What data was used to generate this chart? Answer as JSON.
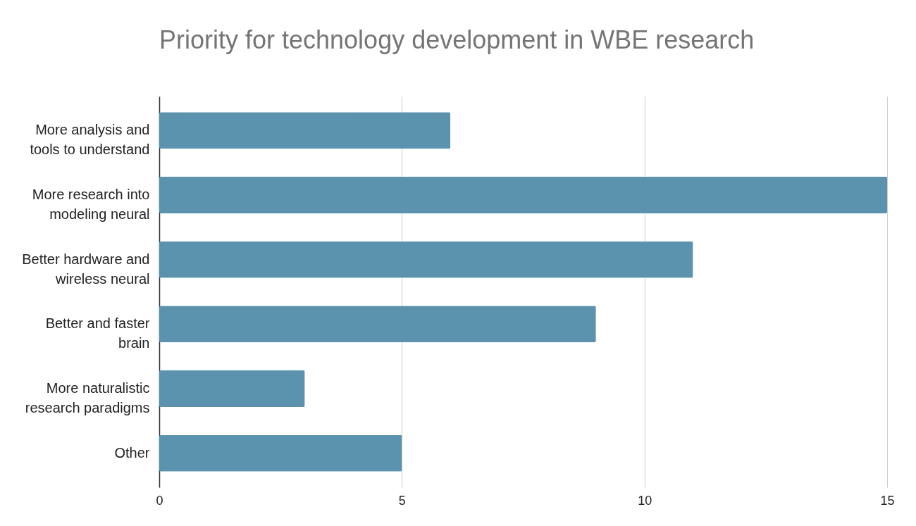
{
  "chart_data": {
    "type": "bar",
    "title": "Priority for technology development in WBE research",
    "orientation": "horizontal",
    "categories": [
      "More analysis and tools to understand",
      "More research into modeling neural",
      "Better hardware and wireless neural",
      "Better and faster brain",
      "More naturalistic research paradigms",
      "Other"
    ],
    "values": [
      6,
      15,
      11,
      9,
      3,
      5
    ],
    "color": "#5b93af",
    "xlim": [
      0,
      15
    ],
    "xticks": [
      0,
      5,
      10,
      15
    ],
    "grid": "x"
  }
}
